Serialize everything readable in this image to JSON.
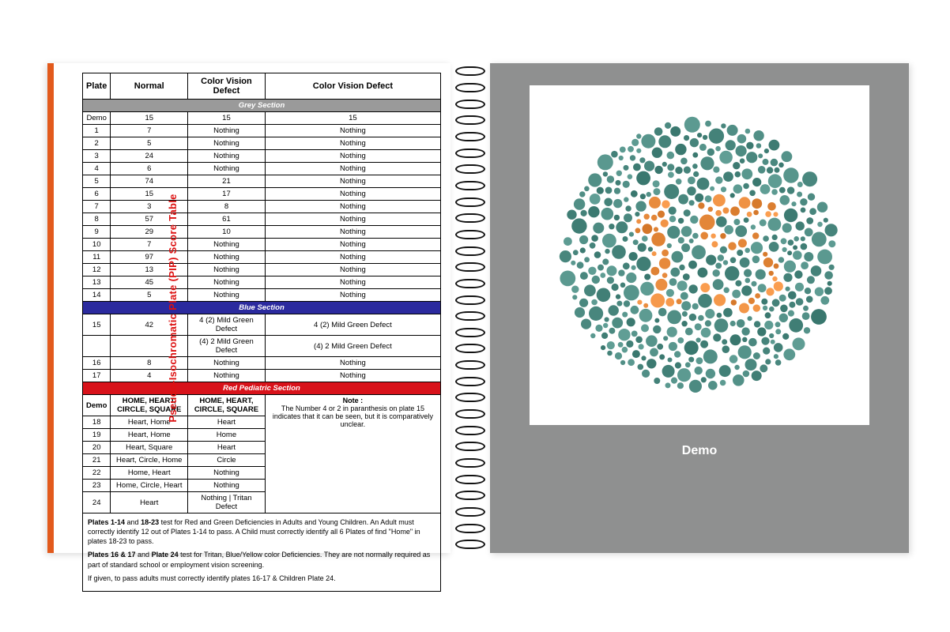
{
  "leftPage": {
    "verticalTitle": "Pseudo-Isochromatic Plate (PIP) Score Table",
    "columns": [
      "Plate",
      "Normal",
      "Color Vision Defect",
      "Color Vision Defect"
    ],
    "sections": {
      "grey": "Grey Section",
      "blue": "Blue Section",
      "red": "Red Pediatric Section"
    },
    "greyRows": [
      [
        "Demo",
        "15",
        "15",
        "15"
      ],
      [
        "1",
        "7",
        "Nothing",
        "Nothing"
      ],
      [
        "2",
        "5",
        "Nothing",
        "Nothing"
      ],
      [
        "3",
        "24",
        "Nothing",
        "Nothing"
      ],
      [
        "4",
        "6",
        "Nothing",
        "Nothing"
      ],
      [
        "5",
        "74",
        "21",
        "Nothing"
      ],
      [
        "6",
        "15",
        "17",
        "Nothing"
      ],
      [
        "7",
        "3",
        "8",
        "Nothing"
      ],
      [
        "8",
        "57",
        "61",
        "Nothing"
      ],
      [
        "9",
        "29",
        "10",
        "Nothing"
      ],
      [
        "10",
        "7",
        "Nothing",
        "Nothing"
      ],
      [
        "11",
        "97",
        "Nothing",
        "Nothing"
      ],
      [
        "12",
        "13",
        "Nothing",
        "Nothing"
      ],
      [
        "13",
        "45",
        "Nothing",
        "Nothing"
      ],
      [
        "14",
        "5",
        "Nothing",
        "Nothing"
      ]
    ],
    "blueRows": [
      [
        "15",
        "42",
        "4 (2) Mild Green Defect",
        "4 (2) Mild Green Defect"
      ],
      [
        "",
        "",
        "(4) 2 Mild Green Defect",
        "(4) 2 Mild Green Defect"
      ],
      [
        "16",
        "8",
        "Nothing",
        "Nothing"
      ],
      [
        "17",
        "4",
        "Nothing",
        "Nothing"
      ]
    ],
    "redHeader": [
      "Demo",
      "HOME, HEART, CIRCLE, SQUARE",
      "HOME, HEART, CIRCLE, SQUARE",
      ""
    ],
    "redRows": [
      [
        "18",
        "Heart, Home",
        "Heart"
      ],
      [
        "19",
        "Heart, Home",
        "Home"
      ],
      [
        "20",
        "Heart, Square",
        "Heart"
      ],
      [
        "21",
        "Heart, Circle, Home",
        "Circle"
      ],
      [
        "22",
        "Home, Heart",
        "Nothing"
      ],
      [
        "23",
        "Home, Circle, Heart",
        "Nothing"
      ],
      [
        "24",
        "Heart",
        "Nothing | Tritan Defect"
      ]
    ],
    "noteTitle": "Note :",
    "noteBody": "The Number 4 or 2 in paranthesis on plate 15 indicates that it can be seen, but it is comparatively unclear.",
    "foot1a": "Plates 1-14",
    "foot1b": " and ",
    "foot1c": "18-23",
    "foot1d": " test for Red and Green Deficiencies in Adults and Young Children. An Adult must correctly identify 12 out of Plates 1-14 to pass. A Child must correctly identify all 6 Plates of find \"Home\" in plates 18-23 to pass.",
    "foot2a": "Plates 16 & 17",
    "foot2b": " and ",
    "foot2c": "Plate 24",
    "foot2d": " test for Tritan, Blue/Yellow color Deficiencies. They are not normally required as part of standard school or employment vision screening.",
    "foot3": "If given, to pass adults must correctly identify plates 16-17 & Children Plate 24."
  },
  "rightPage": {
    "label": "Demo",
    "plate": {
      "number_shown": "15",
      "background_dot_color": "#4d8b82",
      "figure_dot_color": "#e88b3d",
      "frame_bg": "#ffffff",
      "page_bg": "#8f9090"
    }
  },
  "style": {
    "cover_color": "#e25a1c",
    "grey_section_bg": "#9a9a9a",
    "blue_section_bg": "#2b2a9e",
    "red_section_bg": "#d8121a",
    "title_color": "#d11",
    "ring_color": "#111111"
  }
}
